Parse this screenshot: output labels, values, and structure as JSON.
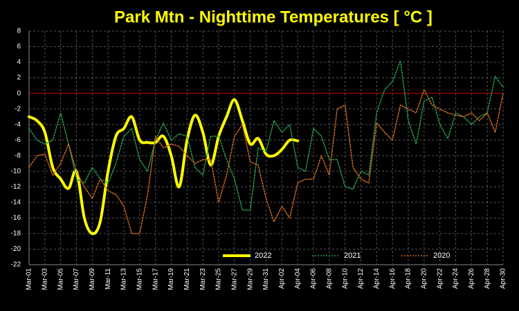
{
  "chart_data": {
    "type": "line",
    "title": "Park Mtn - Nighttime Temperatures [ °C ]",
    "categories": [
      "Mar-01",
      null,
      "Mar-03",
      null,
      "Mar-05",
      null,
      "Mar-07",
      null,
      "Mar-09",
      null,
      "Mar-11",
      null,
      "Mar-13",
      null,
      "Mar-15",
      null,
      "Mar-17",
      null,
      "Mar-19",
      null,
      "Mar-21",
      null,
      "Mar-23",
      null,
      "Mar-25",
      null,
      "Mar-27",
      null,
      "Mar-29",
      null,
      "Mar-31",
      null,
      "Apr-02",
      null,
      "Apr-04",
      null,
      "Apr-06",
      null,
      "Apr-08",
      null,
      "Apr-10",
      null,
      "Apr-12",
      null,
      "Apr-14",
      null,
      "Apr-16",
      null,
      "Apr-18",
      null,
      "Apr-20",
      null,
      "Apr-22",
      null,
      "Apr-24",
      null,
      "Apr-26",
      null,
      "Apr-28",
      null,
      "Apr-30"
    ],
    "series": [
      {
        "name": "2022",
        "color": "#ffff00",
        "width": 4,
        "dashed": false,
        "smooth": true,
        "values": [
          -3,
          -3.5,
          -5,
          -9.5,
          -11,
          -12.2,
          -10,
          -16,
          -18,
          -16.5,
          -10,
          -5.5,
          -4.5,
          -3,
          -6,
          -6.3,
          -6.3,
          -5.5,
          -8,
          -12,
          -6,
          -2.8,
          -5,
          -9.2,
          -5.5,
          -3,
          -0.8,
          -3.5,
          -6.5,
          -5.8,
          -7.8,
          -8,
          -7.2,
          -6,
          -6.1,
          null,
          null,
          null,
          null,
          null,
          null,
          null,
          null,
          null,
          null,
          null,
          null,
          null,
          null,
          null,
          null,
          null,
          null,
          null,
          null,
          null,
          null,
          null,
          null,
          null,
          null
        ]
      },
      {
        "name": "2021",
        "color": "#23a04e",
        "width": 1.5,
        "dashed": true,
        "smooth": false,
        "values": [
          -4.5,
          -6,
          -6.5,
          -6,
          -2.5,
          -6.5,
          -11,
          -11.5,
          -9.5,
          -11,
          -11.5,
          -9,
          -5.5,
          -4.5,
          -8.5,
          -10,
          -6,
          -3.8,
          -6,
          -5.2,
          -5.5,
          -9.5,
          -10.5,
          -5.5,
          -5.5,
          -8.5,
          -11,
          -15,
          -15,
          -7,
          -7.5,
          -3.5,
          -5,
          -4,
          -9.5,
          -10,
          -4.5,
          -5.5,
          -8.5,
          -8.5,
          -12,
          -12.3,
          -10,
          -10.5,
          -2.5,
          0.5,
          1.5,
          4.2,
          -3.5,
          -6.5,
          -1,
          -0.5,
          -4,
          -5.8,
          -2.5,
          -3,
          -4,
          -3,
          -2.5,
          2.2,
          0.8
        ]
      },
      {
        "name": "2020",
        "color": "#d2691e",
        "width": 1.5,
        "dashed": true,
        "smooth": false,
        "values": [
          -9.5,
          -8,
          -7.8,
          -10.5,
          -9,
          -6.5,
          -10,
          -12,
          -13.5,
          -11,
          -12.5,
          -13,
          -14.5,
          -18,
          -18,
          -13,
          -5.5,
          -7,
          -6.5,
          -6.8,
          -8,
          -9,
          -8.5,
          -8.5,
          -14,
          -10.5,
          -5.5,
          -4,
          -8.8,
          -9.2,
          -13.5,
          -16.5,
          -14.5,
          -16,
          -11.5,
          -11,
          -11,
          -8,
          -10.5,
          -2,
          -1.5,
          -9.5,
          -11,
          -11.5,
          -3.8,
          -5,
          -6,
          -1.5,
          -2,
          -2.5,
          0.5,
          -1.5,
          -2,
          -2.5,
          -2.8,
          -3,
          -2.5,
          -3.5,
          -2.5,
          -5,
          0
        ]
      }
    ],
    "ylim": [
      -22,
      8
    ],
    "yticks": [
      -22,
      -20,
      -18,
      -16,
      -14,
      -12,
      -10,
      -8,
      -6,
      -4,
      -2,
      0,
      2,
      4,
      6,
      8
    ],
    "grid": true,
    "zero_line_color": "#cc0000",
    "legend": "bottom"
  }
}
